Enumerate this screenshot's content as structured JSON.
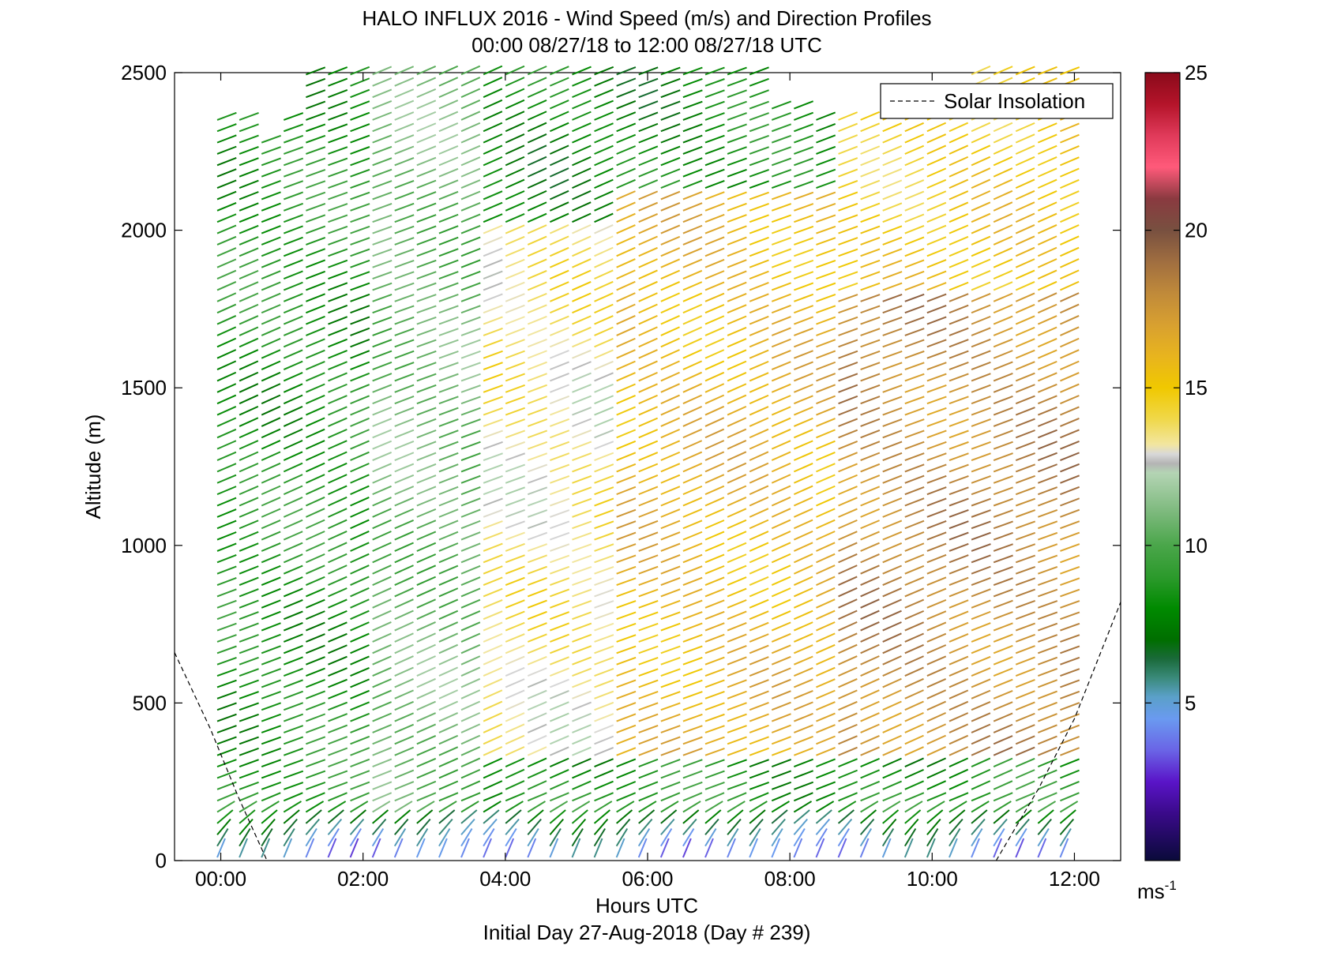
{
  "chart_data": {
    "type": "wind-barb-profile",
    "title": "HALO INFLUX 2016 - Wind Speed (m/s) and Direction Profiles",
    "subtitle": "00:00 08/27/18 to 12:00 08/27/18  UTC",
    "xlabel": "Hours UTC",
    "footer": "Initial Day 27-Aug-2018 (Day # 239)",
    "ylabel": "Altitude (m)",
    "xlim": [
      -0.65,
      12.65
    ],
    "ylim": [
      0,
      2500
    ],
    "x_ticks": [
      {
        "value": 0,
        "label": "00:00"
      },
      {
        "value": 2,
        "label": "02:00"
      },
      {
        "value": 4,
        "label": "04:00"
      },
      {
        "value": 6,
        "label": "06:00"
      },
      {
        "value": 8,
        "label": "08:00"
      },
      {
        "value": 10,
        "label": "10:00"
      },
      {
        "value": 12,
        "label": "12:00"
      }
    ],
    "y_ticks": [
      {
        "value": 0,
        "label": "0"
      },
      {
        "value": 500,
        "label": "500"
      },
      {
        "value": 1000,
        "label": "1000"
      },
      {
        "value": 1500,
        "label": "1500"
      },
      {
        "value": 2000,
        "label": "2000"
      },
      {
        "value": 2500,
        "label": "2500"
      }
    ],
    "legend": {
      "label": "Solar Insolation",
      "position": "top-right"
    },
    "colorbar": {
      "range": [
        0,
        25
      ],
      "ticks": [
        {
          "value": 5,
          "label": "5"
        },
        {
          "value": 10,
          "label": "10"
        },
        {
          "value": 15,
          "label": "15"
        },
        {
          "value": 20,
          "label": "20"
        },
        {
          "value": 25,
          "label": "25"
        }
      ],
      "unit": "ms",
      "unit_exp": "-1",
      "stops": [
        {
          "v": 0,
          "c": "#0a0a3a"
        },
        {
          "v": 1.5,
          "c": "#3a0a8a"
        },
        {
          "v": 2.5,
          "c": "#5a14c8"
        },
        {
          "v": 3.5,
          "c": "#6a64e6"
        },
        {
          "v": 4.5,
          "c": "#6a9af0"
        },
        {
          "v": 5.2,
          "c": "#5aa0c8"
        },
        {
          "v": 5.8,
          "c": "#3a8a7a"
        },
        {
          "v": 6.4,
          "c": "#1a6a3a"
        },
        {
          "v": 7,
          "c": "#006e00"
        },
        {
          "v": 8,
          "c": "#008a00"
        },
        {
          "v": 9,
          "c": "#2c9a2c"
        },
        {
          "v": 10,
          "c": "#4aa64a"
        },
        {
          "v": 11,
          "c": "#7ab87a"
        },
        {
          "v": 12.3,
          "c": "#b4d4b4"
        },
        {
          "v": 12.6,
          "c": "#b4b4b4"
        },
        {
          "v": 12.9,
          "c": "#d8d8d8"
        },
        {
          "v": 13.2,
          "c": "#f2e6a0"
        },
        {
          "v": 14,
          "c": "#f0d84a"
        },
        {
          "v": 15,
          "c": "#f0c800"
        },
        {
          "v": 16,
          "c": "#e8b41e"
        },
        {
          "v": 17,
          "c": "#d8a030"
        },
        {
          "v": 18,
          "c": "#c08a3a"
        },
        {
          "v": 19,
          "c": "#a06e40"
        },
        {
          "v": 20,
          "c": "#785040"
        },
        {
          "v": 21,
          "c": "#8a3a40"
        },
        {
          "v": 22,
          "c": "#ff5a7a"
        },
        {
          "v": 23,
          "c": "#e03a5a"
        },
        {
          "v": 24,
          "c": "#b4142a"
        },
        {
          "v": 25,
          "c": "#8a0a1a"
        }
      ]
    },
    "profiles": {
      "time_start": -0.05,
      "time_end": 11.8,
      "count": 39,
      "altitude_step_m": 36,
      "top_altitude_m": [
        2360,
        2370,
        2300,
        2350,
        2500,
        2500,
        2500,
        2500,
        2500,
        2500,
        2500,
        2500,
        2500,
        2500,
        2500,
        2500,
        2500,
        2500,
        2500,
        2500,
        2500,
        2500,
        2500,
        2500,
        2500,
        2400,
        2400,
        2350,
        2350,
        2350,
        2400,
        2400,
        2400,
        2400,
        2500,
        2500,
        2500,
        2500,
        2500
      ],
      "wind_direction_deg": 250,
      "speed_regimes": [
        {
          "time_range": [
            -0.05,
            2.0
          ],
          "altitude_range": [
            150,
            2500
          ],
          "speed_ms": 8.5
        },
        {
          "time_range": [
            2.0,
            3.5
          ],
          "altitude_range": [
            150,
            2500
          ],
          "speed_ms": 10.5
        },
        {
          "time_range": [
            3.5,
            5.5
          ],
          "altitude_range": [
            300,
            2000
          ],
          "speed_ms": 13.5
        },
        {
          "time_range": [
            5.5,
            8.5
          ],
          "altitude_range": [
            300,
            2100
          ],
          "speed_ms": 16.0
        },
        {
          "time_range": [
            8.5,
            11.8
          ],
          "altitude_range": [
            300,
            1800
          ],
          "speed_ms": 18.0
        },
        {
          "time_range": [
            8.5,
            11.8
          ],
          "altitude_range": [
            1800,
            2500
          ],
          "speed_ms": 15.0
        },
        {
          "time_range": [
            -0.05,
            11.8
          ],
          "altitude_range": [
            0,
            150
          ],
          "speed_ms": 4.0
        }
      ]
    },
    "solar_insolation_line": [
      {
        "x": -0.65,
        "y": 660
      },
      {
        "x": -0.15,
        "y": 420
      },
      {
        "x": 0.25,
        "y": 200
      },
      {
        "x": 0.65,
        "y": 0
      },
      {
        "x": 10.9,
        "y": 0
      },
      {
        "x": 11.5,
        "y": 230
      },
      {
        "x": 12.0,
        "y": 450
      },
      {
        "x": 12.65,
        "y": 820
      }
    ]
  }
}
